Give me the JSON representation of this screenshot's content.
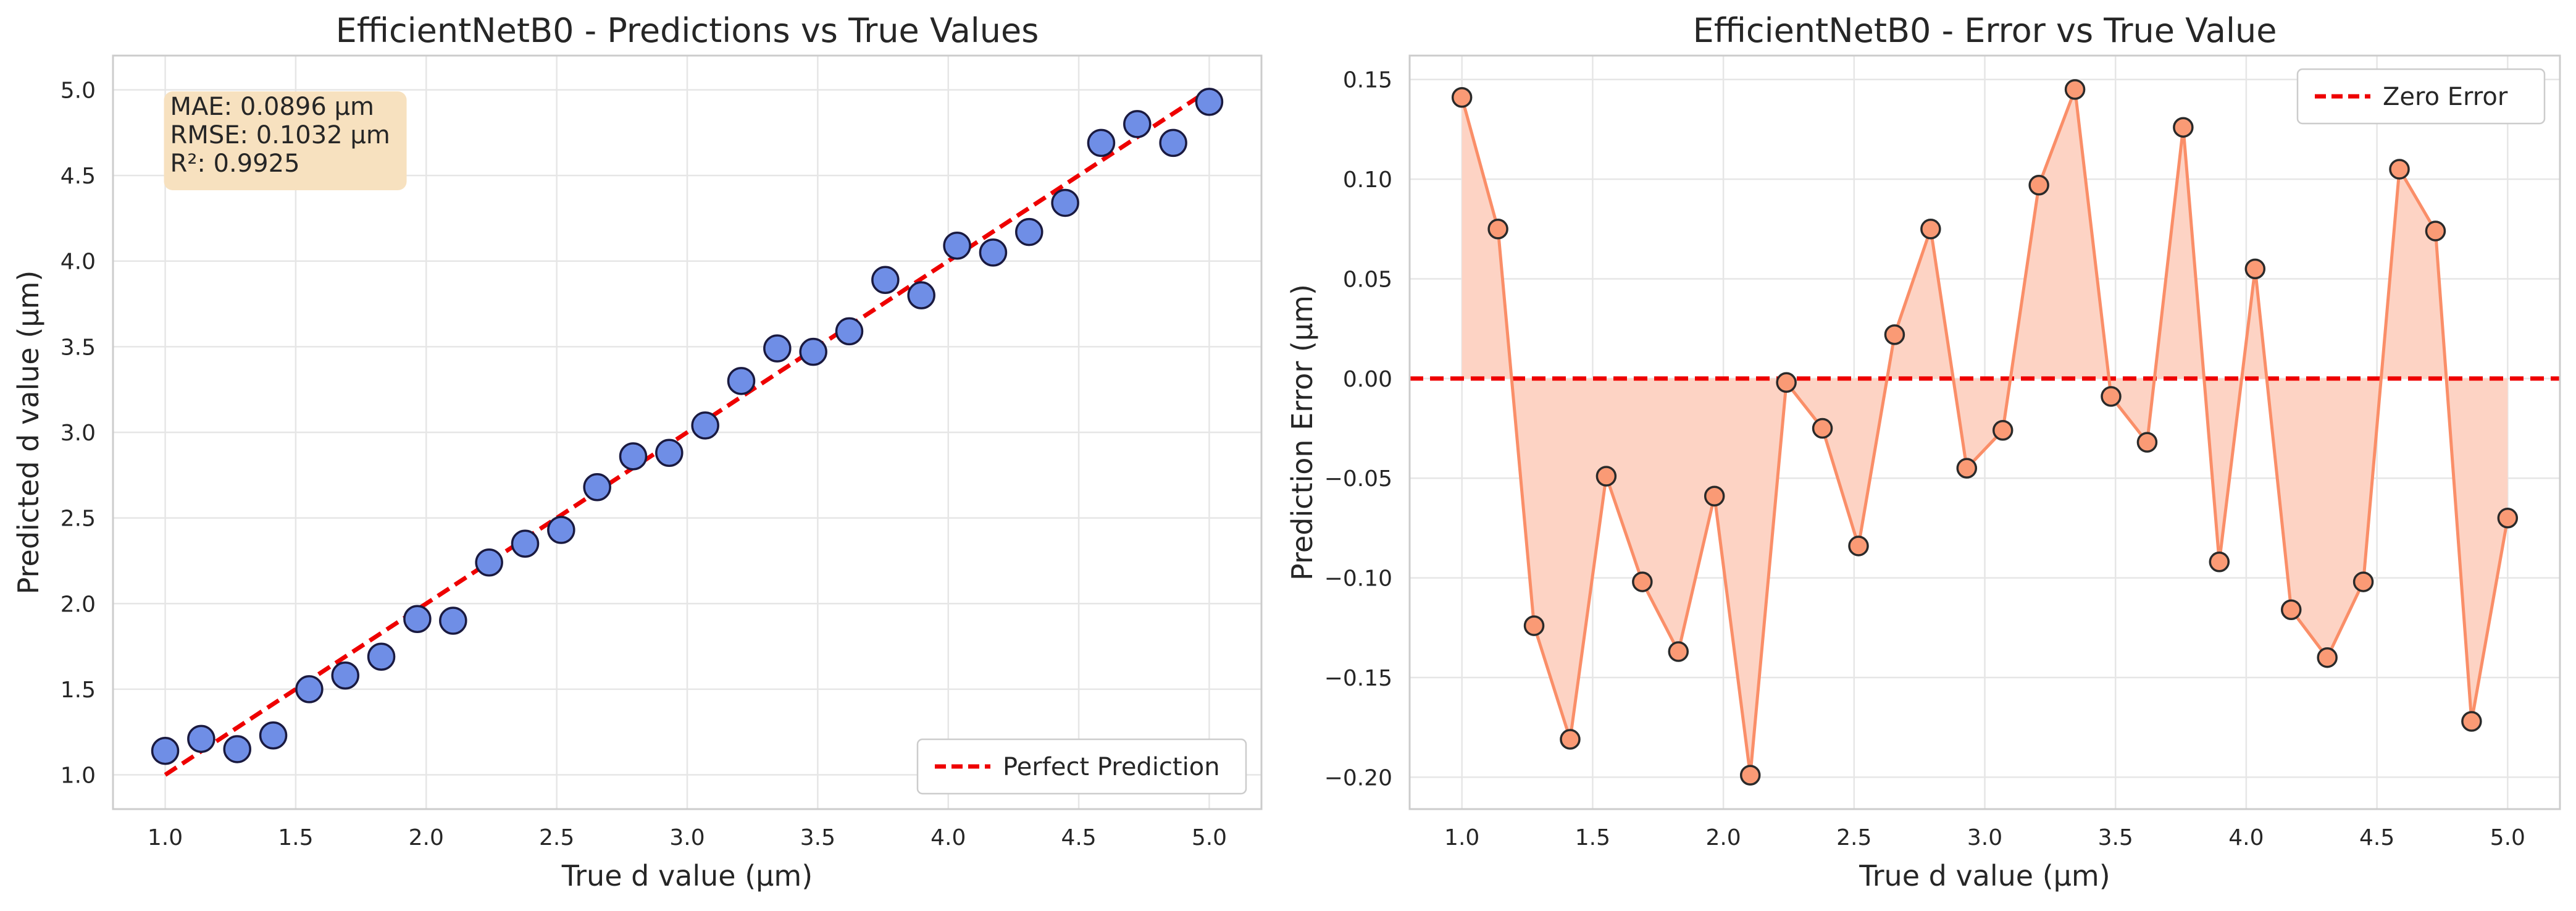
{
  "colors": {
    "scatter_fill": "#6f8ee6",
    "scatter_edge": "#1a1a40",
    "ideal_line": "#ee0000",
    "error_line": "#fa8e68",
    "error_fill": "#fdd3c4",
    "error_marker": "#fa9a75",
    "stats_box": "#f7e1bf",
    "grid": "#e6e6e6"
  },
  "chart_data": [
    {
      "type": "scatter",
      "title": "EfficientNetB0 - Predictions vs True Values",
      "xlabel": "True d value (μm)",
      "ylabel": "Predicted d value (μm)",
      "xlim": [
        0.8,
        5.2
      ],
      "ylim": [
        0.8,
        5.2
      ],
      "xticks": [
        1.0,
        1.5,
        2.0,
        2.5,
        3.0,
        3.5,
        4.0,
        4.5,
        5.0
      ],
      "yticks": [
        1.0,
        1.5,
        2.0,
        2.5,
        3.0,
        3.5,
        4.0,
        4.5,
        5.0
      ],
      "grid": true,
      "stats_box": {
        "lines": [
          "MAE: 0.0896 μm",
          "RMSE: 0.1032 μm",
          "R²: 0.9925"
        ],
        "position": "top-left"
      },
      "series": [
        {
          "marker": "circle",
          "x": [
            1.0,
            1.138,
            1.276,
            1.414,
            1.552,
            1.69,
            1.828,
            1.966,
            2.103,
            2.241,
            2.379,
            2.517,
            2.655,
            2.793,
            2.931,
            3.069,
            3.207,
            3.345,
            3.483,
            3.621,
            3.759,
            3.897,
            4.034,
            4.172,
            4.31,
            4.448,
            4.586,
            4.724,
            4.862,
            5.0
          ],
          "y": [
            1.14,
            1.21,
            1.15,
            1.23,
            1.5,
            1.58,
            1.69,
            1.91,
            1.9,
            2.24,
            2.35,
            2.43,
            2.68,
            2.86,
            2.88,
            3.04,
            3.3,
            3.49,
            3.47,
            3.59,
            3.89,
            3.8,
            4.09,
            4.05,
            4.17,
            4.34,
            4.69,
            4.8,
            4.69,
            4.93
          ]
        },
        {
          "name": "Perfect Prediction",
          "style": "dashed-line",
          "x": [
            1.0,
            5.0
          ],
          "y": [
            1.0,
            5.0
          ]
        }
      ],
      "legend": {
        "position": "bottom-right",
        "entries": [
          "Perfect Prediction"
        ]
      }
    },
    {
      "type": "line",
      "title": "EfficientNetB0 - Error vs True Value",
      "xlabel": "True d value (μm)",
      "ylabel": "Prediction Error (μm)",
      "xlim": [
        0.8,
        5.2
      ],
      "ylim": [
        -0.216,
        0.162
      ],
      "xticks": [
        1.0,
        1.5,
        2.0,
        2.5,
        3.0,
        3.5,
        4.0,
        4.5,
        5.0
      ],
      "yticks": [
        -0.2,
        -0.15,
        -0.1,
        -0.05,
        0.0,
        0.05,
        0.1,
        0.15
      ],
      "ytick_labels": [
        "−0.20",
        "−0.15",
        "−0.10",
        "−0.05",
        "0.00",
        "0.05",
        "0.10",
        "0.15"
      ],
      "grid": true,
      "series": [
        {
          "marker": "circle",
          "fill_to_zero": true,
          "x": [
            1.0,
            1.138,
            1.276,
            1.414,
            1.552,
            1.69,
            1.828,
            1.966,
            2.103,
            2.241,
            2.379,
            2.517,
            2.655,
            2.793,
            2.931,
            3.069,
            3.207,
            3.345,
            3.483,
            3.621,
            3.759,
            3.897,
            4.034,
            4.172,
            4.31,
            4.448,
            4.586,
            4.724,
            4.862,
            5.0
          ],
          "y": [
            0.141,
            0.075,
            -0.124,
            -0.181,
            -0.049,
            -0.102,
            -0.137,
            -0.059,
            -0.199,
            -0.002,
            -0.025,
            -0.084,
            0.022,
            0.075,
            -0.045,
            -0.026,
            0.097,
            0.145,
            -0.009,
            -0.032,
            0.126,
            -0.092,
            0.055,
            -0.116,
            -0.14,
            -0.102,
            0.105,
            0.074,
            -0.172,
            -0.07
          ]
        },
        {
          "name": "Zero Error",
          "style": "dashed-line",
          "y_const": 0
        }
      ],
      "legend": {
        "position": "top-right",
        "entries": [
          "Zero Error"
        ]
      }
    }
  ]
}
